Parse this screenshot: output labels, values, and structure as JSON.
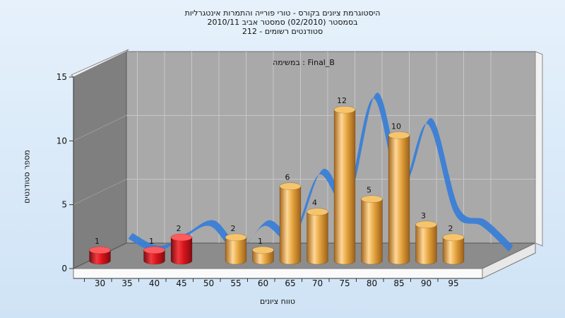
{
  "chart_data": {
    "type": "bar",
    "title_lines": [
      "היסטוגרמת ציונים בקורס - טורי פורייה והתמרות אינטגרליות",
      "בסמסטר  (02/2010)  סמסטר אביב 2010/11",
      "סטודנטים רשומים - 212"
    ],
    "annotation": "במשימה : Final_B",
    "xlabel": "טווח ציונים",
    "ylabel": "מספר סטודנטים",
    "ylim": [
      0,
      15
    ],
    "yticks": [
      "0",
      "5",
      "10",
      "15"
    ],
    "xticks": [
      "30",
      "35",
      "40",
      "45",
      "50",
      "55",
      "60",
      "65",
      "70",
      "75",
      "80",
      "85",
      "90",
      "95"
    ],
    "bars": [
      {
        "x": "30",
        "value": 1,
        "label": "1",
        "color": "red"
      },
      {
        "x": "40",
        "value": 1,
        "label": "1",
        "color": "red"
      },
      {
        "x": "45",
        "value": 2,
        "label": "2",
        "color": "red"
      },
      {
        "x": "55",
        "value": 2,
        "label": "2",
        "color": "orange"
      },
      {
        "x": "60",
        "value": 1,
        "label": "1",
        "color": "orange"
      },
      {
        "x": "65",
        "value": 6,
        "label": "6",
        "color": "orange"
      },
      {
        "x": "70",
        "value": 4,
        "label": "4",
        "color": "orange"
      },
      {
        "x": "75",
        "value": 12,
        "label": "12",
        "color": "orange"
      },
      {
        "x": "80",
        "value": 5,
        "label": "5",
        "color": "orange"
      },
      {
        "x": "85",
        "value": 10,
        "label": "10",
        "color": "orange"
      },
      {
        "x": "90",
        "value": 3,
        "label": "3",
        "color": "orange"
      },
      {
        "x": "95",
        "value": 2,
        "label": "2",
        "color": "orange"
      }
    ],
    "grid": true,
    "colors": {
      "failing_bar": "#d9141b",
      "passing_bar": "#e6a640",
      "trend_ribbon": "#3a7ed6",
      "trend_ribbon_low": "#5e5e5e",
      "wall": "#a9a9a9",
      "side_wall": "#7f7f7f",
      "floor": "#8c8c8c"
    }
  }
}
